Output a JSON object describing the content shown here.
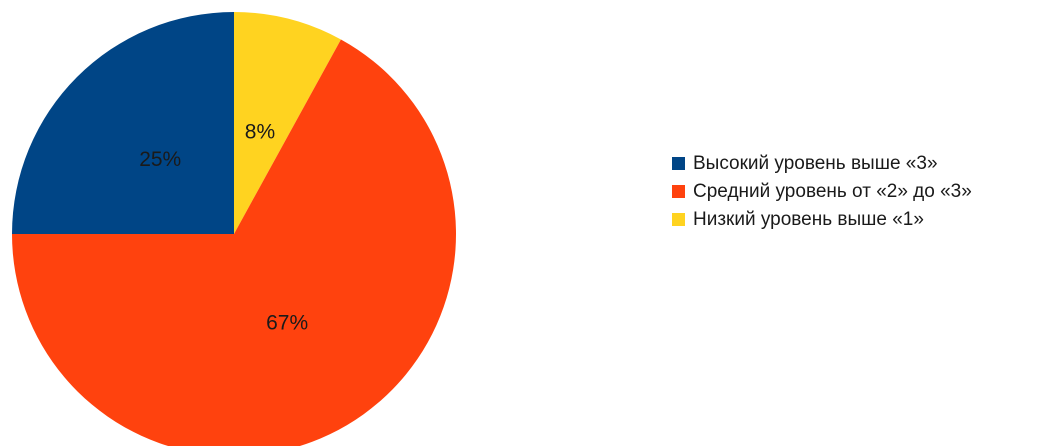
{
  "chart_data": {
    "type": "pie",
    "title": "",
    "slices": [
      {
        "label": "Низкий уровень выше «1»",
        "value": 8,
        "value_label": "8%",
        "color": "#FFD320"
      },
      {
        "label": "Средний уровень от «2» до «3»",
        "value": 67,
        "value_label": "67%",
        "color": "#FF420E"
      },
      {
        "label": "Высокий уровень выше «3»",
        "value": 25,
        "value_label": "25%",
        "color": "#004586"
      }
    ],
    "start_angle_deg": 0,
    "direction": "clockwise",
    "legend_position": "right",
    "legend": [
      {
        "label": "Высокий уровень выше «3»",
        "color": "#004586"
      },
      {
        "label": "Средний уровень от «2» до «3»",
        "color": "#FF420E"
      },
      {
        "label": "Низкий уровень выше «1»",
        "color": "#FFD320"
      }
    ]
  }
}
